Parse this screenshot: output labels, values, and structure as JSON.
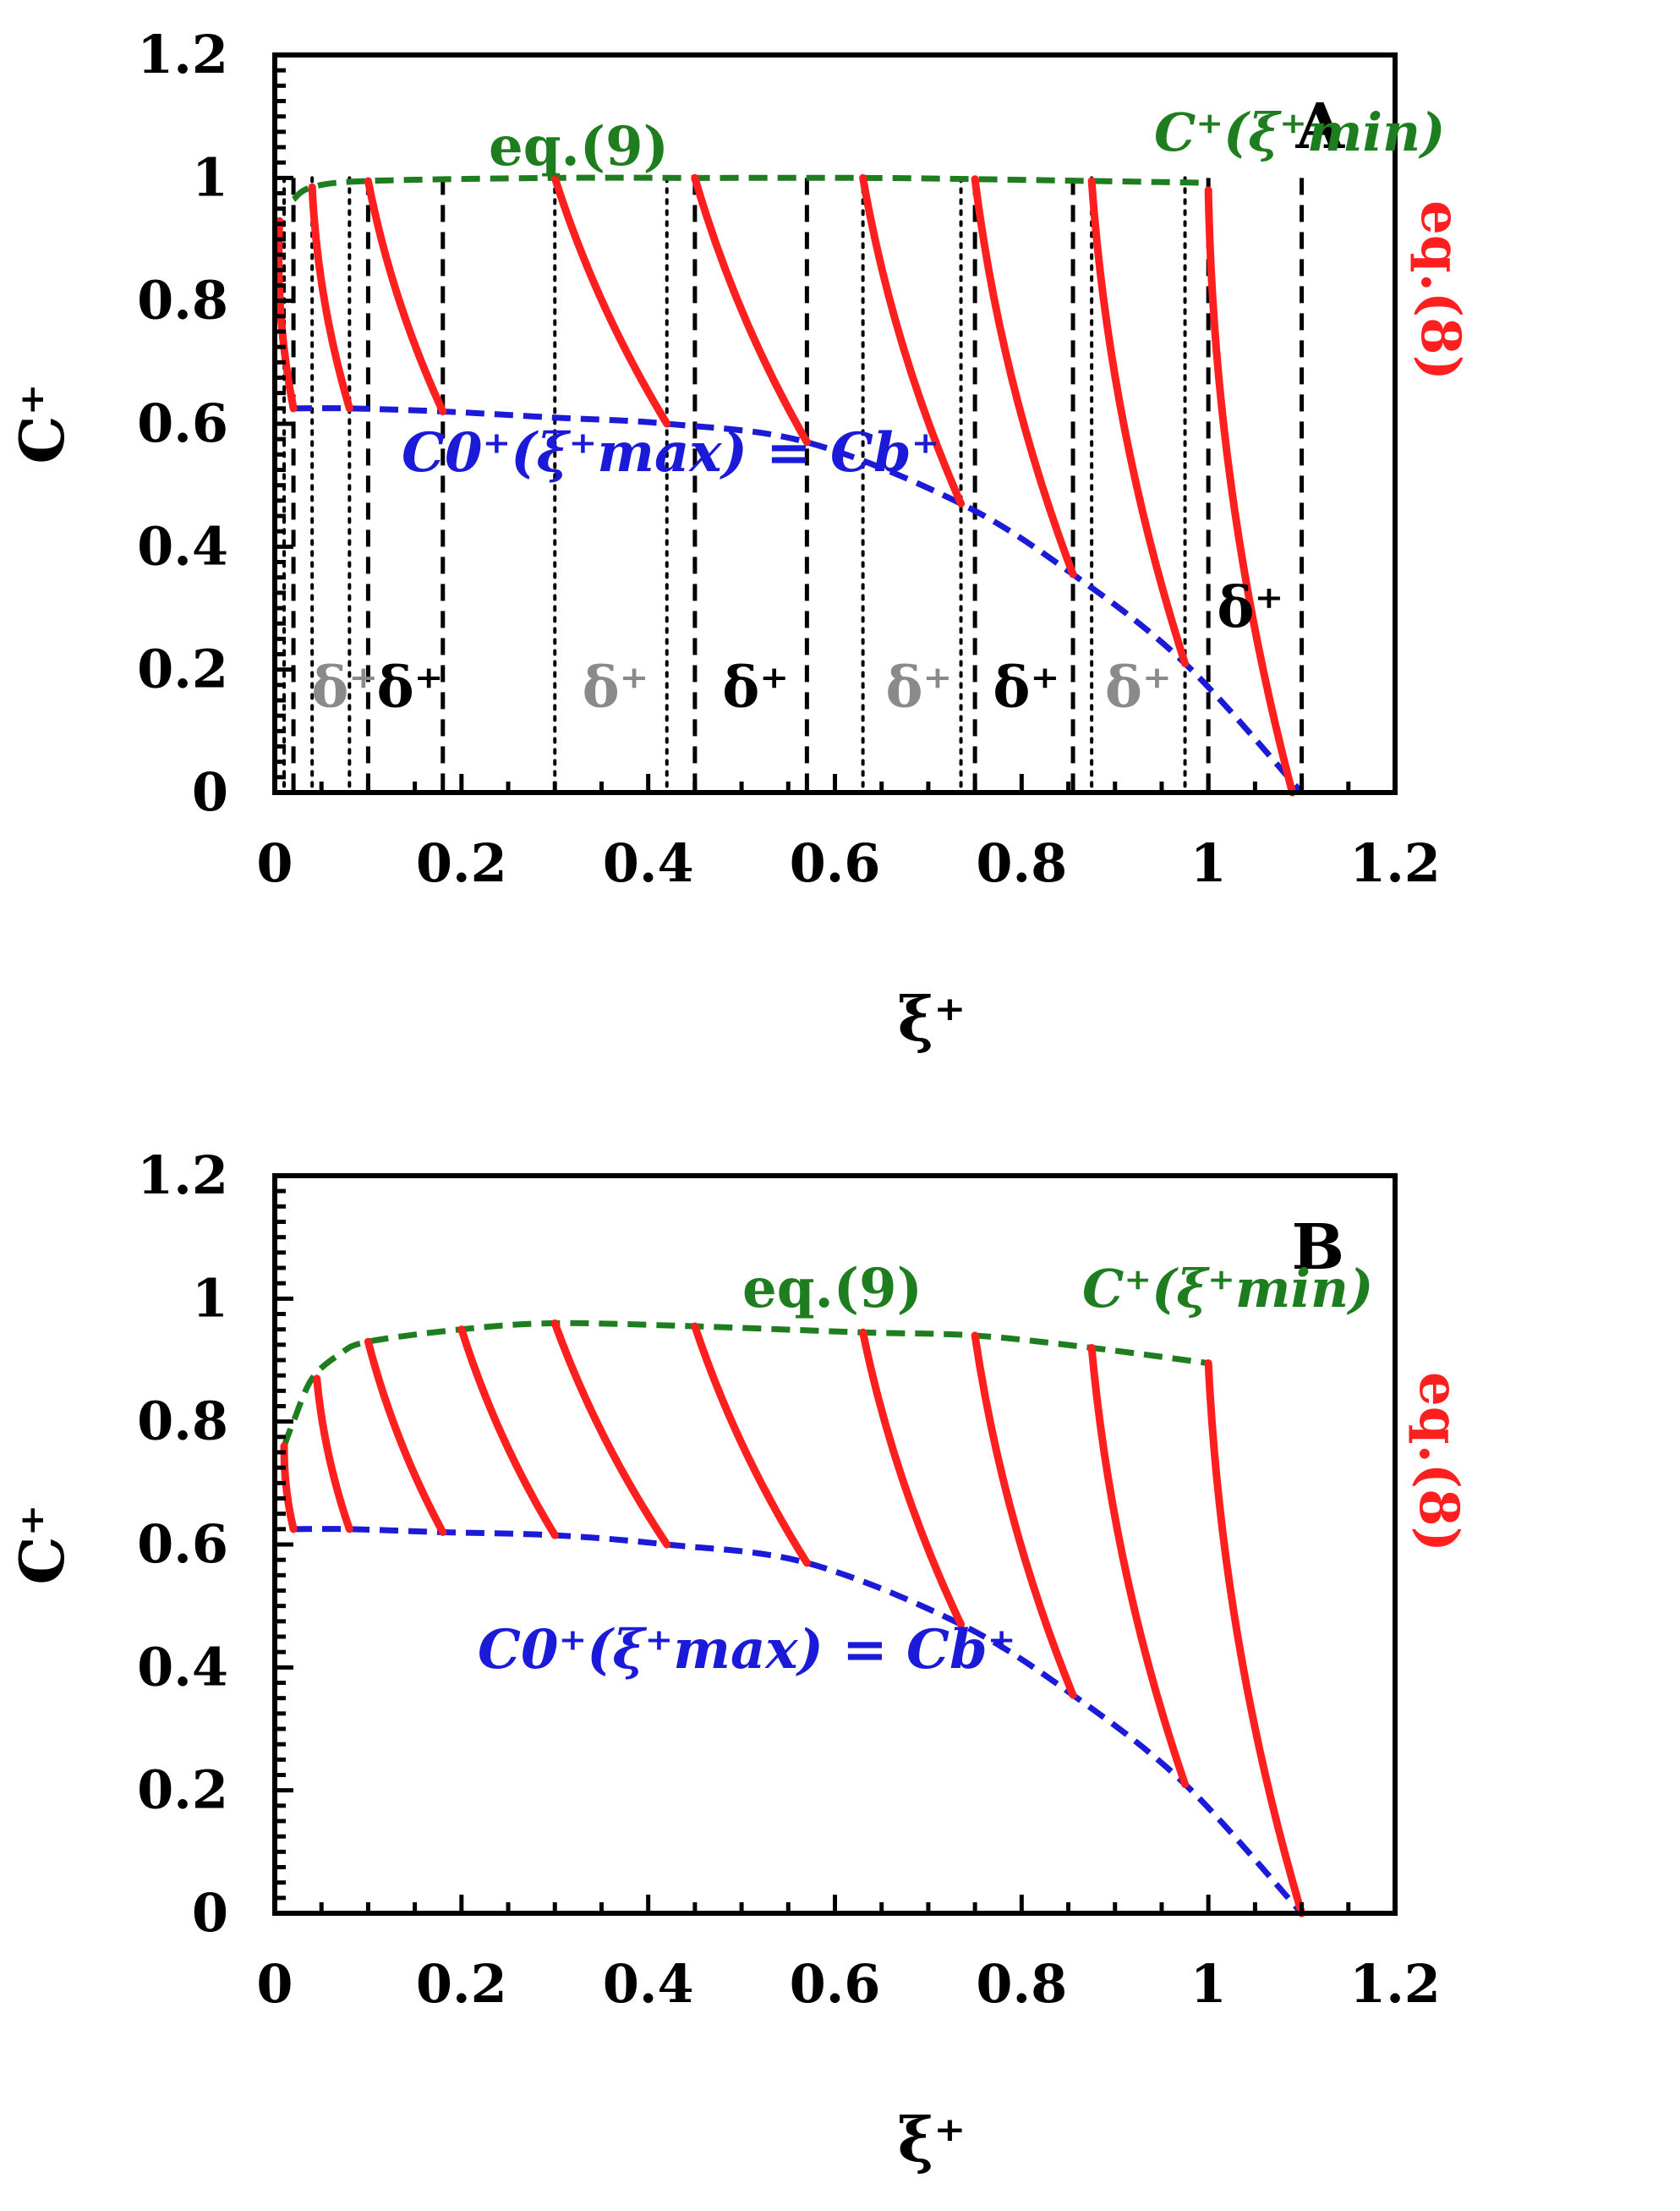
{
  "colors": {
    "limit": "#ff1f1f",
    "top": "#1e7d1e",
    "bottom": "#1a1ad8",
    "active": "#000000",
    "inactive": "#8a8a8a",
    "axis": "#000000"
  },
  "chart_data": [
    {
      "type": "line",
      "panel": "A",
      "xlabel": "ξ⁺",
      "ylabel": "C⁺",
      "xlim": [
        0,
        1.2
      ],
      "ylim": [
        0,
        1.2
      ],
      "xticks": [
        "0",
        "0.2",
        "0.4",
        "0.6",
        "0.8",
        "1",
        "1.2"
      ],
      "yticks": [
        "0",
        "0.2",
        "0.4",
        "0.6",
        "0.8",
        "1",
        "1.2"
      ],
      "top_curve": {
        "name": "C⁺(ξ⁺min)",
        "label_eq": "eq.(9)",
        "label_fn": "C⁺(ξ⁺min)",
        "points": [
          [
            0.02,
            0.965
          ],
          [
            0.04,
            0.985
          ],
          [
            0.1,
            0.995
          ],
          [
            0.3,
            1.0
          ],
          [
            0.45,
            1.0
          ],
          [
            0.63,
            1.0
          ],
          [
            0.75,
            0.998
          ],
          [
            0.875,
            0.995
          ],
          [
            1.0,
            0.992
          ]
        ]
      },
      "bottom_curve": {
        "name": "C0⁺(ξ⁺max) = Cb⁺",
        "label": "C0⁺(ξ⁺max) = Cb⁺",
        "points": [
          [
            0.02,
            0.625
          ],
          [
            0.08,
            0.625
          ],
          [
            0.18,
            0.62
          ],
          [
            0.3,
            0.61
          ],
          [
            0.42,
            0.6
          ],
          [
            0.57,
            0.57
          ],
          [
            0.735,
            0.47
          ],
          [
            0.855,
            0.355
          ],
          [
            0.975,
            0.21
          ],
          [
            1.1,
            0.0
          ]
        ]
      },
      "segments_label": "eq.(8)",
      "segments": [
        {
          "x1": 0.005,
          "y1": 0.93,
          "x2": 0.02,
          "y2": 0.625
        },
        {
          "x1": 0.04,
          "y1": 0.985,
          "x2": 0.08,
          "y2": 0.625
        },
        {
          "x1": 0.1,
          "y1": 0.995,
          "x2": 0.18,
          "y2": 0.62
        },
        {
          "x1": 0.3,
          "y1": 1.0,
          "x2": 0.42,
          "y2": 0.6
        },
        {
          "x1": 0.45,
          "y1": 1.0,
          "x2": 0.57,
          "y2": 0.57
        },
        {
          "x1": 0.63,
          "y1": 1.0,
          "x2": 0.735,
          "y2": 0.47
        },
        {
          "x1": 0.75,
          "y1": 0.998,
          "x2": 0.855,
          "y2": 0.355
        },
        {
          "x1": 0.875,
          "y1": 0.995,
          "x2": 0.975,
          "y2": 0.21
        },
        {
          "x1": 1.0,
          "y1": 0.98,
          "x2": 1.09,
          "y2": 0.0
        }
      ],
      "dashed_lines": [
        0.02,
        0.1,
        0.18,
        0.45,
        0.57,
        0.75,
        0.855,
        1.0,
        1.1
      ],
      "dotted_lines": [
        0.01,
        0.04,
        0.08,
        0.3,
        0.42,
        0.63,
        0.735,
        0.875,
        0.975
      ],
      "delta_labels": [
        {
          "text": "δ⁺",
          "x": 0.075,
          "y": 0.14,
          "style": "inactive"
        },
        {
          "text": "δ⁺",
          "x": 0.145,
          "y": 0.14,
          "style": "active"
        },
        {
          "text": "δ⁺",
          "x": 0.365,
          "y": 0.14,
          "style": "inactive"
        },
        {
          "text": "δ⁺",
          "x": 0.515,
          "y": 0.14,
          "style": "active"
        },
        {
          "text": "δ⁺",
          "x": 0.69,
          "y": 0.14,
          "style": "inactive"
        },
        {
          "text": "δ⁺",
          "x": 0.805,
          "y": 0.14,
          "style": "active"
        },
        {
          "text": "δ⁺",
          "x": 0.925,
          "y": 0.14,
          "style": "inactive"
        },
        {
          "text": "δ⁺",
          "x": 1.045,
          "y": 0.27,
          "style": "active"
        }
      ],
      "panel_label": "A"
    },
    {
      "type": "line",
      "panel": "B",
      "xlabel": "ξ⁺",
      "ylabel": "C⁺",
      "xlim": [
        0,
        1.2
      ],
      "ylim": [
        0,
        1.2
      ],
      "xticks": [
        "0",
        "0.2",
        "0.4",
        "0.6",
        "0.8",
        "1",
        "1.2"
      ],
      "yticks": [
        "0",
        "0.2",
        "0.4",
        "0.6",
        "0.8",
        "1",
        "1.2"
      ],
      "top_curve": {
        "name": "C⁺(ξ⁺min)",
        "label_eq": "eq.(9)",
        "label_fn": "C⁺(ξ⁺min)",
        "points": [
          [
            0.01,
            0.76
          ],
          [
            0.02,
            0.8
          ],
          [
            0.04,
            0.87
          ],
          [
            0.07,
            0.91
          ],
          [
            0.1,
            0.93
          ],
          [
            0.2,
            0.95
          ],
          [
            0.3,
            0.96
          ],
          [
            0.45,
            0.955
          ],
          [
            0.63,
            0.945
          ],
          [
            0.75,
            0.94
          ],
          [
            0.875,
            0.92
          ],
          [
            1.0,
            0.895
          ]
        ]
      },
      "bottom_curve": {
        "name": "C0⁺(ξ⁺max) = Cb⁺",
        "label": "C0⁺(ξ⁺max) = Cb⁺",
        "points": [
          [
            0.02,
            0.625
          ],
          [
            0.08,
            0.625
          ],
          [
            0.18,
            0.62
          ],
          [
            0.3,
            0.615
          ],
          [
            0.42,
            0.6
          ],
          [
            0.57,
            0.57
          ],
          [
            0.735,
            0.47
          ],
          [
            0.855,
            0.355
          ],
          [
            0.975,
            0.21
          ],
          [
            1.1,
            0.0
          ]
        ]
      },
      "segments_label": "eq.(8)",
      "segments": [
        {
          "x1": 0.01,
          "y1": 0.76,
          "x2": 0.02,
          "y2": 0.625
        },
        {
          "x1": 0.045,
          "y1": 0.87,
          "x2": 0.08,
          "y2": 0.625
        },
        {
          "x1": 0.1,
          "y1": 0.93,
          "x2": 0.18,
          "y2": 0.62
        },
        {
          "x1": 0.2,
          "y1": 0.95,
          "x2": 0.3,
          "y2": 0.615
        },
        {
          "x1": 0.3,
          "y1": 0.96,
          "x2": 0.42,
          "y2": 0.6
        },
        {
          "x1": 0.45,
          "y1": 0.955,
          "x2": 0.57,
          "y2": 0.57
        },
        {
          "x1": 0.63,
          "y1": 0.945,
          "x2": 0.735,
          "y2": 0.47
        },
        {
          "x1": 0.75,
          "y1": 0.94,
          "x2": 0.855,
          "y2": 0.355
        },
        {
          "x1": 0.875,
          "y1": 0.92,
          "x2": 0.975,
          "y2": 0.21
        },
        {
          "x1": 1.0,
          "y1": 0.895,
          "x2": 1.1,
          "y2": 0.0
        }
      ],
      "dashed_lines": [],
      "dotted_lines": [],
      "delta_labels": [],
      "panel_label": "B"
    }
  ]
}
